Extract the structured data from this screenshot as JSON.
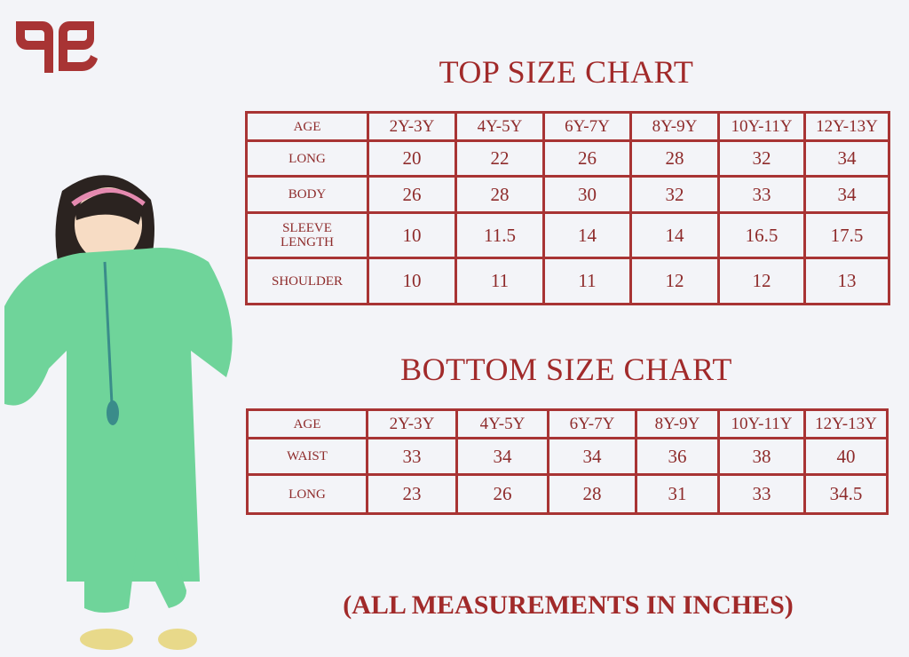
{
  "brand_color": "#a83434",
  "logo": {
    "alt": "brand logo",
    "icon": "qe-monogram"
  },
  "top_chart": {
    "title": "TOP SIZE CHART",
    "header": [
      "AGE",
      "2Y-3Y",
      "4Y-5Y",
      "6Y-7Y",
      "8Y-9Y",
      "10Y-11Y",
      "12Y-13Y"
    ],
    "rows": [
      {
        "label": "LONG",
        "values": [
          "20",
          "22",
          "26",
          "28",
          "32",
          "34"
        ]
      },
      {
        "label": "BODY",
        "values": [
          "26",
          "28",
          "30",
          "32",
          "33",
          "34"
        ]
      },
      {
        "label": "SLEEVE LENGTH",
        "values": [
          "10",
          "11.5",
          "14",
          "14",
          "16.5",
          "17.5"
        ]
      },
      {
        "label": "SHOULDER",
        "values": [
          "10",
          "11",
          "11",
          "12",
          "12",
          "13"
        ]
      }
    ]
  },
  "bottom_chart": {
    "title": "BOTTOM SIZE CHART",
    "header": [
      "AGE",
      "2Y-3Y",
      "4Y-5Y",
      "6Y-7Y",
      "8Y-9Y",
      "10Y-11Y",
      "12Y-13Y"
    ],
    "rows": [
      {
        "label": "WAIST",
        "values": [
          "33",
          "34",
          "34",
          "36",
          "38",
          "40"
        ]
      },
      {
        "label": "LONG",
        "values": [
          "23",
          "26",
          "28",
          "31",
          "33",
          "34.5"
        ]
      }
    ]
  },
  "footer": "(ALL MEASUREMENTS IN INCHES)"
}
